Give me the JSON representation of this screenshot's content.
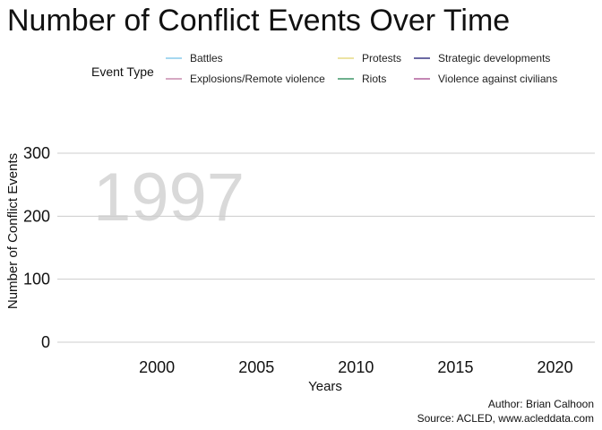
{
  "chart_data": {
    "type": "line",
    "title": "Number of Conflict Events Over Time",
    "xlabel": "Years",
    "ylabel": "Number of Conflict Events",
    "frame_label": "1997",
    "xlim": [
      1995,
      2022
    ],
    "ylim": [
      0,
      300
    ],
    "x_ticks": [
      2000,
      2005,
      2010,
      2015,
      2020
    ],
    "y_ticks": [
      0,
      100,
      200,
      300
    ],
    "grid": "horizontal",
    "legend": {
      "title": "Event Type",
      "placement": "top",
      "entries": [
        {
          "name": "Battles",
          "color": "#a6d8f0"
        },
        {
          "name": "Explosions/Remote violence",
          "color": "#d6a8c2"
        },
        {
          "name": "Protests",
          "color": "#ece3a3"
        },
        {
          "name": "Riots",
          "color": "#6fb08e"
        },
        {
          "name": "Strategic developments",
          "color": "#6b69a3"
        },
        {
          "name": "Violence against civilians",
          "color": "#c487b4"
        }
      ]
    },
    "series": []
  },
  "caption": {
    "author": "Author: Brian Calhoon",
    "source": "Source: ACLED, www.acleddata.com"
  }
}
